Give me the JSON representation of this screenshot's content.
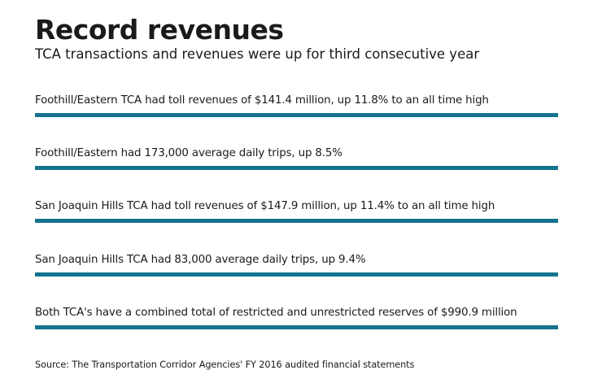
{
  "title": "Record revenues",
  "subtitle": "TCA transactions and revenues were up for third consecutive year",
  "facts": [
    {
      "text": "Foothill/Eastern TCA had toll revenues of $141.4 million, up 11.8% to an all time high"
    },
    {
      "text": "Foothill/Eastern had 173,000 average daily trips, up 8.5%"
    },
    {
      "text": "San Joaquin Hills TCA had toll revenues of $147.9 million, up 11.4% to an all time high"
    },
    {
      "text": "San Joaquin Hills TCA had 83,000 average daily trips, up 9.4%"
    },
    {
      "text": "Both TCA's have a combined total of restricted and unrestricted reserves of $990.9 million"
    }
  ],
  "source": "Source: The Transportation Corridor Agencies' FY 2016 audited financial statements",
  "colors": {
    "bar": "#15738e",
    "text": "#1a1a1a",
    "background": "#ffffff"
  }
}
